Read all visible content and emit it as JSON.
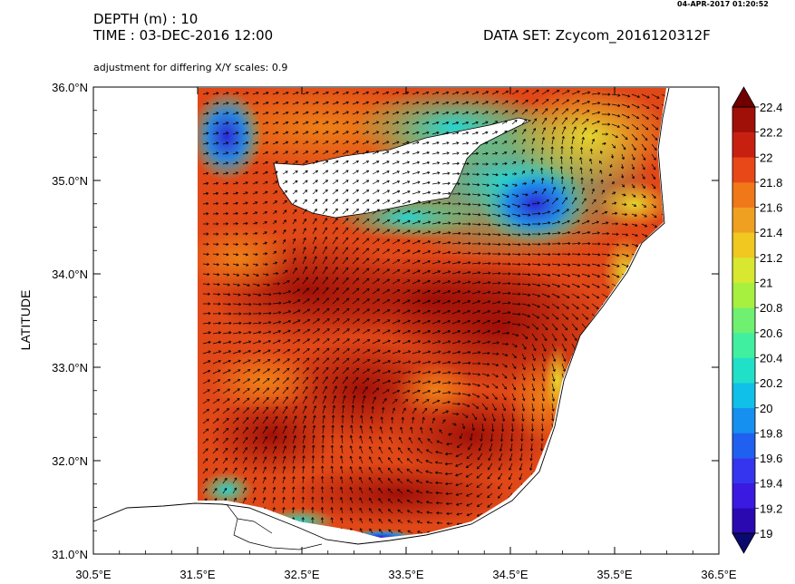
{
  "header": {
    "depth_label": "DEPTH (m) : 10",
    "time_label": "TIME : 03-DEC-2016 12:00",
    "dataset_label": "DATA SET: Zcycom_2016120312F",
    "adjustment_note": "adjustment for differing X/Y scales: 0.9",
    "timestamp": "04-APR-2017 01:20:52"
  },
  "chart_data": {
    "type": "heatmap",
    "title": "",
    "ylabel": "LATITUDE",
    "xlabel": "",
    "xlim": [
      30.5,
      36.5
    ],
    "ylim": [
      31.0,
      36.0
    ],
    "x_ticks": [
      "30.5°E",
      "31.5°E",
      "32.5°E",
      "33.5°E",
      "34.5°E",
      "35.5°E",
      "36.5°E"
    ],
    "y_ticks": [
      "31.0°N",
      "32.0°N",
      "33.0°N",
      "34.0°N",
      "35.0°N",
      "36.0°N"
    ],
    "x_tick_values": [
      30.5,
      31.5,
      32.5,
      33.5,
      34.5,
      35.5,
      36.5
    ],
    "y_tick_values": [
      31.0,
      32.0,
      33.0,
      34.0,
      35.0,
      36.0
    ],
    "colorbar": {
      "labels": [
        "22.4",
        "22.2",
        "22",
        "21.8",
        "21.6",
        "21.4",
        "21.2",
        "21",
        "20.8",
        "20.6",
        "20.4",
        "20.2",
        "20",
        "19.8",
        "19.6",
        "19.4",
        "19.2",
        "19"
      ],
      "min": 19.0,
      "max": 22.4,
      "step": 0.2,
      "colors": [
        "#0a0a6e",
        "#2a0ab0",
        "#3a1ae0",
        "#3535f0",
        "#2060f0",
        "#1590f0",
        "#10c0e8",
        "#20e0c8",
        "#40f0a0",
        "#70f070",
        "#a8f040",
        "#d8e830",
        "#f0c820",
        "#f0a020",
        "#f07818",
        "#e84818",
        "#c82010",
        "#a01008",
        "#700000"
      ]
    },
    "fields": {
      "sst_range": [
        19.0,
        22.4
      ],
      "blue_core_cyprus_gyre": 19.6,
      "warm_anticyclone_center": 22.3
    },
    "grid": false,
    "legend": "right"
  }
}
